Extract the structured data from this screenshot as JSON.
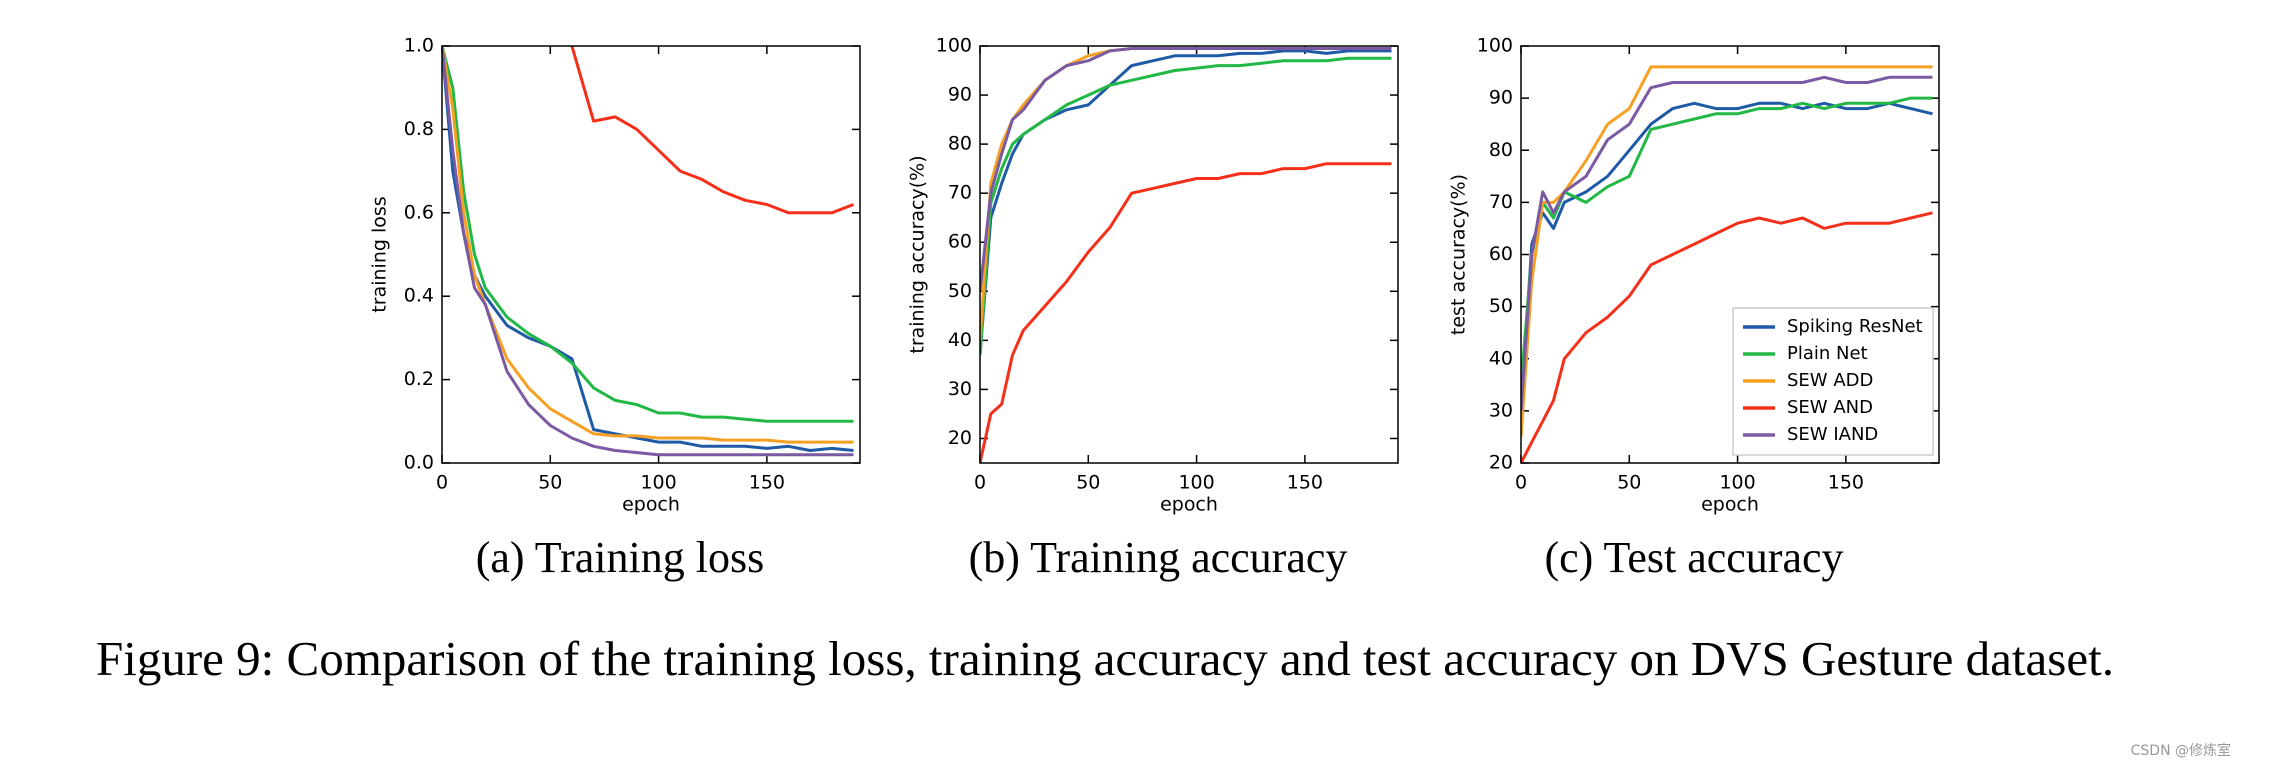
{
  "figure_caption": "Figure 9: Comparison of the training loss, training accuracy and test accuracy on DVS Gesture dataset.",
  "watermark": "CSDN @修炼室",
  "chart_data": [
    {
      "type": "line",
      "caption": "(a) Training loss",
      "xlabel": "epoch",
      "ylabel": "training loss",
      "x": [
        0,
        5,
        10,
        15,
        20,
        30,
        40,
        50,
        60,
        70,
        80,
        90,
        100,
        110,
        120,
        130,
        140,
        150,
        160,
        170,
        180,
        190
      ],
      "xlim": [
        0,
        193
      ],
      "xticks": [
        0,
        50,
        100,
        150
      ],
      "ylim": [
        0,
        1
      ],
      "yticks": [
        {
          "value": 0,
          "label": "0.0"
        },
        0.2,
        0.4,
        0.6,
        0.8,
        {
          "value": 1,
          "label": "1.0"
        }
      ],
      "series": [
        {
          "name": "Spiking ResNet",
          "color": "#1f5aa6",
          "values": [
            1.0,
            0.7,
            0.55,
            0.45,
            0.4,
            0.33,
            0.3,
            0.28,
            0.25,
            0.08,
            0.07,
            0.06,
            0.05,
            0.05,
            0.04,
            0.04,
            0.04,
            0.035,
            0.04,
            0.03,
            0.035,
            0.03
          ]
        },
        {
          "name": "Plain Net",
          "color": "#22b845",
          "values": [
            1.0,
            0.9,
            0.65,
            0.5,
            0.42,
            0.35,
            0.31,
            0.28,
            0.24,
            0.18,
            0.15,
            0.14,
            0.12,
            0.12,
            0.11,
            0.11,
            0.105,
            0.1,
            0.1,
            0.1,
            0.1,
            0.1
          ]
        },
        {
          "name": "SEW ADD",
          "color": "#f5a023",
          "values": [
            1.0,
            0.85,
            0.6,
            0.45,
            0.38,
            0.25,
            0.18,
            0.13,
            0.1,
            0.07,
            0.065,
            0.065,
            0.06,
            0.06,
            0.06,
            0.055,
            0.055,
            0.055,
            0.05,
            0.05,
            0.05,
            0.05
          ]
        },
        {
          "name": "SEW AND",
          "color": "#f5301a",
          "values": [
            null,
            null,
            null,
            null,
            null,
            null,
            null,
            null,
            1.0,
            0.82,
            0.83,
            0.8,
            0.75,
            0.7,
            0.68,
            0.65,
            0.63,
            0.62,
            0.6,
            0.6,
            0.6,
            0.62
          ]
        },
        {
          "name": "SEW IAND",
          "color": "#7a5aa3",
          "values": [
            1.0,
            0.75,
            0.55,
            0.42,
            0.38,
            0.22,
            0.14,
            0.09,
            0.06,
            0.04,
            0.03,
            0.025,
            0.02,
            0.02,
            0.02,
            0.02,
            0.02,
            0.02,
            0.02,
            0.02,
            0.02,
            0.02
          ]
        }
      ]
    },
    {
      "type": "line",
      "caption": "(b) Training accuracy",
      "xlabel": "epoch",
      "ylabel": "training accuracy(%)",
      "x": [
        0,
        5,
        10,
        15,
        20,
        30,
        40,
        50,
        60,
        70,
        80,
        90,
        100,
        110,
        120,
        130,
        140,
        150,
        160,
        170,
        180,
        190
      ],
      "xlim": [
        0,
        193
      ],
      "xticks": [
        0,
        50,
        100,
        150
      ],
      "ylim": [
        15,
        100
      ],
      "yticks": [
        20,
        30,
        40,
        50,
        60,
        70,
        80,
        90,
        100
      ],
      "series": [
        {
          "name": "Spiking ResNet",
          "color": "#1f5aa6",
          "values": [
            37,
            65,
            72,
            78,
            82,
            85,
            87,
            88,
            92,
            96,
            97,
            98,
            98,
            98,
            98.5,
            98.5,
            99,
            99,
            98.5,
            99,
            99,
            99
          ]
        },
        {
          "name": "Plain Net",
          "color": "#22b845",
          "values": [
            37,
            68,
            75,
            80,
            82,
            85,
            88,
            90,
            92,
            93,
            94,
            95,
            95.5,
            96,
            96,
            96.5,
            97,
            97,
            97,
            97.5,
            97.5,
            97.5
          ]
        },
        {
          "name": "SEW ADD",
          "color": "#f5a023",
          "values": [
            40,
            72,
            80,
            85,
            88,
            93,
            96,
            98,
            99,
            99.5,
            99.5,
            99.5,
            99.5,
            99.5,
            99.5,
            99.5,
            99.5,
            99.5,
            99.5,
            99.5,
            99.5,
            99.5
          ]
        },
        {
          "name": "SEW AND",
          "color": "#f5301a",
          "values": [
            15,
            25,
            27,
            37,
            42,
            47,
            52,
            58,
            63,
            70,
            71,
            72,
            73,
            73,
            74,
            74,
            75,
            75,
            76,
            76,
            76,
            76
          ]
        },
        {
          "name": "SEW IAND",
          "color": "#7a5aa3",
          "values": [
            50,
            70,
            78,
            85,
            87,
            93,
            96,
            97,
            99,
            99.5,
            99.5,
            99.5,
            99.5,
            99.5,
            99.5,
            99.5,
            99.5,
            99.5,
            99.5,
            99.5,
            99.5,
            99.5
          ]
        }
      ]
    },
    {
      "type": "line",
      "caption": "(c) Test accuracy",
      "xlabel": "epoch",
      "ylabel": "test accuracy(%)",
      "legend": "lower right",
      "x": [
        0,
        5,
        10,
        15,
        20,
        30,
        40,
        50,
        60,
        70,
        80,
        90,
        100,
        110,
        120,
        130,
        140,
        150,
        160,
        170,
        180,
        190
      ],
      "xlim": [
        0,
        193
      ],
      "xticks": [
        0,
        50,
        100,
        150
      ],
      "ylim": [
        20,
        100
      ],
      "yticks": [
        20,
        30,
        40,
        50,
        60,
        70,
        80,
        90,
        100
      ],
      "series": [
        {
          "name": "Spiking ResNet",
          "color": "#1f5aa6",
          "values": [
            30,
            62,
            68,
            65,
            70,
            72,
            75,
            80,
            85,
            88,
            89,
            88,
            88,
            89,
            89,
            88,
            89,
            88,
            88,
            89,
            88,
            87
          ]
        },
        {
          "name": "Plain Net",
          "color": "#22b845",
          "values": [
            35,
            60,
            70,
            67,
            72,
            70,
            73,
            75,
            84,
            85,
            86,
            87,
            87,
            88,
            88,
            89,
            88,
            89,
            89,
            89,
            90,
            90
          ]
        },
        {
          "name": "SEW ADD",
          "color": "#f5a023",
          "values": [
            25,
            55,
            70,
            70,
            72,
            78,
            85,
            88,
            96,
            96,
            96,
            96,
            96,
            96,
            96,
            96,
            96,
            96,
            96,
            96,
            96,
            96
          ]
        },
        {
          "name": "SEW AND",
          "color": "#f5301a",
          "values": [
            20,
            24,
            28,
            32,
            40,
            45,
            48,
            52,
            58,
            60,
            62,
            64,
            66,
            67,
            66,
            67,
            65,
            66,
            66,
            66,
            67,
            68
          ]
        },
        {
          "name": "SEW IAND",
          "color": "#7a5aa3",
          "values": [
            30,
            60,
            72,
            68,
            72,
            75,
            82,
            85,
            92,
            93,
            93,
            93,
            93,
            93,
            93,
            93,
            94,
            93,
            93,
            94,
            94,
            94
          ]
        }
      ]
    }
  ]
}
